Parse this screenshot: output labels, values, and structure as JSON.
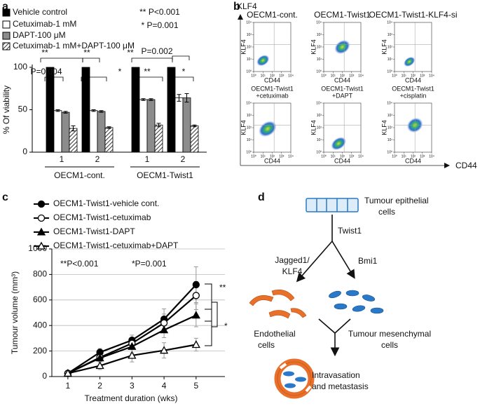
{
  "panels": [
    "a",
    "b",
    "c",
    "d"
  ],
  "chart_data": [
    {
      "type": "bar",
      "ylabel": "% Of viability",
      "groups": [
        "OECM1-cont.",
        "OECM1-Twist1"
      ],
      "categories": [
        "1",
        "2",
        "1",
        "2"
      ],
      "series": [
        {
          "name": "Vehicle control",
          "color": "#000000",
          "values": [
            100,
            100,
            100,
            100
          ],
          "errors": [
            0,
            0,
            0,
            0
          ]
        },
        {
          "name": "Cetuximab-1 mM",
          "color": "#ffffff",
          "values": [
            49,
            49,
            62,
            64
          ],
          "errors": [
            1,
            1,
            1,
            4
          ]
        },
        {
          "name": "DAPT-100 μM",
          "color": "#8c8c8c",
          "values": [
            47,
            48,
            62,
            64
          ],
          "errors": [
            1,
            1,
            1,
            5
          ]
        },
        {
          "name": "Cetuximab-1 mM+DAPT-100 μM",
          "color": "#ffffff",
          "hatch": true,
          "values": [
            28,
            29,
            32,
            31
          ],
          "errors": [
            3,
            1,
            2,
            1
          ]
        }
      ],
      "ylim": [
        0,
        100
      ],
      "yticks": [
        0,
        50,
        100
      ],
      "grid": false,
      "annotations": [
        "** P<0.001",
        "* P=0.001",
        "**",
        "**",
        "**",
        "P=0.002",
        "P=0.004",
        "*",
        "**",
        "*"
      ]
    },
    {
      "type": "flow-cytometry",
      "xlabel": "CD44",
      "ylabel": "KLF4",
      "panels": [
        {
          "title": [
            "OECM1-cont."
          ]
        },
        {
          "title": [
            "OECM1-Twist1"
          ]
        },
        {
          "title": [
            "OECM1-Twist1-KLF4-si"
          ]
        },
        {
          "title": [
            "OECM1-Twist1",
            "+cetuximab"
          ]
        },
        {
          "title": [
            "OECM1-Twist1",
            "+DAPT"
          ]
        },
        {
          "title": [
            "OECM1-Twist1",
            "+cisplatin"
          ]
        }
      ],
      "xlim": [
        0,
        4
      ],
      "ylim": [
        0,
        4
      ],
      "xticks": [
        {
          "value": 0,
          "label": "10⁰"
        },
        {
          "value": 1,
          "label": "10¹"
        },
        {
          "value": 2,
          "label": "10²"
        },
        {
          "value": 3,
          "label": "10³"
        },
        {
          "value": 4,
          "label": "10⁴"
        }
      ],
      "yticks": [
        {
          "value": 0,
          "label": "10⁰"
        },
        {
          "value": 1,
          "label": "10¹"
        },
        {
          "value": 2,
          "label": "10²"
        },
        {
          "value": 3,
          "label": "10³"
        },
        {
          "value": 4,
          "label": "10⁴"
        }
      ]
    },
    {
      "type": "line",
      "xlabel": "Treatment duration (wks)",
      "ylabel": "Tumour volume (mm³)",
      "x": [
        1,
        2,
        3,
        4,
        5
      ],
      "series": [
        {
          "name": "OECM1-Twist1-vehicle cont.",
          "color": "#000000",
          "marker": "circle",
          "values": [
            25,
            190,
            285,
            450,
            720
          ],
          "errors": [
            10,
            30,
            40,
            80,
            140
          ]
        },
        {
          "name": "OECM1-Twist1-cetuximab",
          "color": "#000000",
          "marker": "circle-open",
          "values": [
            25,
            150,
            260,
            420,
            635
          ],
          "errors": [
            10,
            30,
            40,
            70,
            110
          ]
        },
        {
          "name": "OECM1-Twist1-DAPT",
          "color": "#000000",
          "marker": "triangle",
          "values": [
            25,
            145,
            235,
            365,
            480
          ],
          "errors": [
            10,
            30,
            50,
            60,
            90
          ]
        },
        {
          "name": "OECM1-Twist1-cetuximab+DAPT",
          "color": "#000000",
          "marker": "triangle-open",
          "values": [
            25,
            85,
            165,
            205,
            250
          ],
          "errors": [
            10,
            30,
            50,
            60,
            50
          ]
        }
      ],
      "xlim": [
        0.5,
        5.9
      ],
      "ylim": [
        0,
        1000
      ],
      "xticks": [
        1,
        2,
        3,
        4,
        5
      ],
      "yticks": [
        0,
        200,
        400,
        600,
        800,
        1000
      ],
      "grid": true,
      "annotations": [
        "**P<0.001",
        "*P=0.001",
        "**",
        "*"
      ]
    }
  ],
  "diagram": {
    "epithelial": [
      "Tumour epithelial",
      "cells"
    ],
    "twist": "Twist1",
    "jagged": [
      "Jagged1/",
      "KLF4"
    ],
    "bmi": "Bmi1",
    "endothelial": [
      "Endothelial",
      "cells"
    ],
    "mesenchymal": [
      "Tumour mesenchymal",
      "cells"
    ],
    "outcome": [
      "Intravasation",
      "and metastasis"
    ]
  }
}
